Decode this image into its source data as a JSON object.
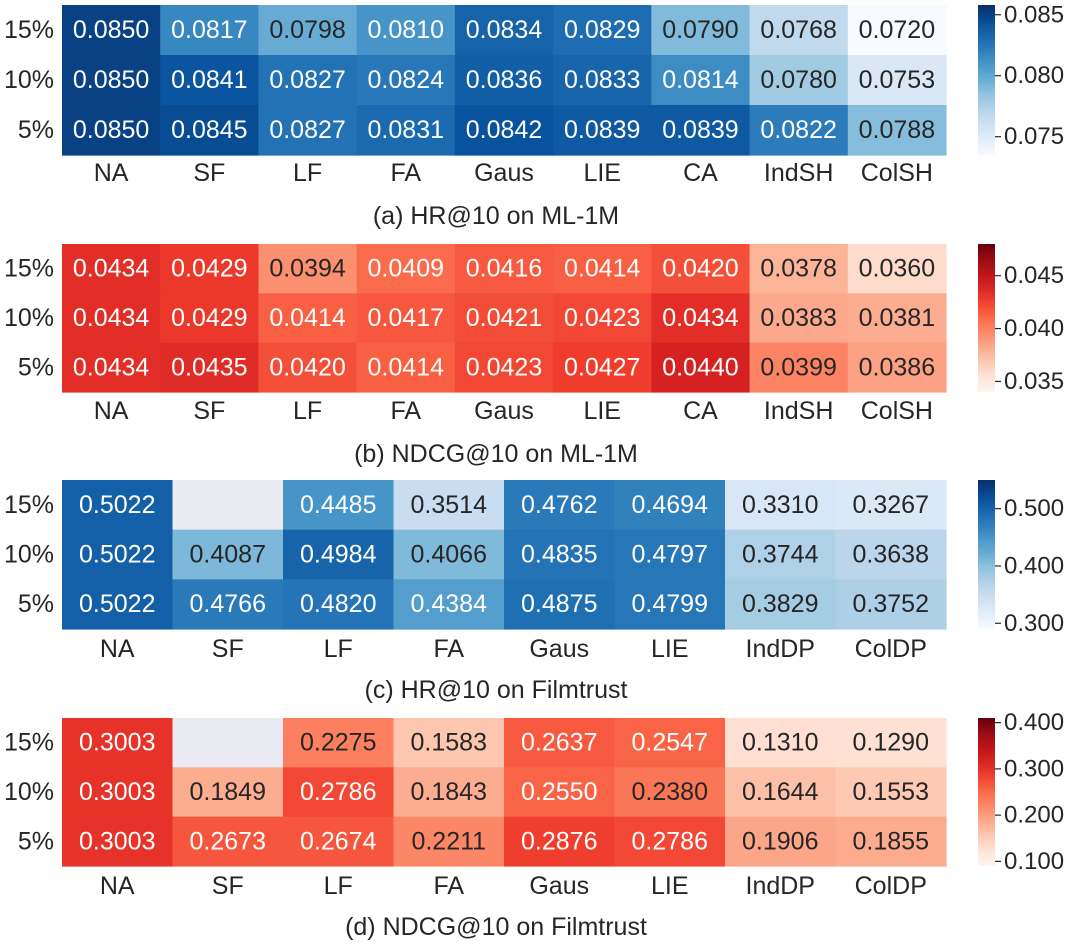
{
  "chart_data": [
    {
      "type": "heatmap",
      "caption": "(a) HR@10 on ML-1M",
      "rows": [
        "15%",
        "10%",
        "5%"
      ],
      "columns": [
        "NA",
        "SF",
        "LF",
        "FA",
        "Gaus",
        "LIE",
        "CA",
        "IndSH",
        "ColSH"
      ],
      "values": [
        [
          0.085,
          0.0817,
          0.0798,
          0.081,
          0.0834,
          0.0829,
          0.079,
          0.0768,
          0.072
        ],
        [
          0.085,
          0.0841,
          0.0827,
          0.0824,
          0.0836,
          0.0833,
          0.0814,
          0.078,
          0.0753
        ],
        [
          0.085,
          0.0845,
          0.0827,
          0.0831,
          0.0842,
          0.0839,
          0.0839,
          0.0822,
          0.0788
        ]
      ],
      "labels": [
        [
          "0.0850",
          "0.0817",
          "0.0798",
          "0.0810",
          "0.0834",
          "0.0829",
          "0.0790",
          "0.0768",
          "0.0720"
        ],
        [
          "0.0850",
          "0.0841",
          "0.0827",
          "0.0824",
          "0.0836",
          "0.0833",
          "0.0814",
          "0.0780",
          "0.0753"
        ],
        [
          "0.0850",
          "0.0845",
          "0.0827",
          "0.0831",
          "0.0842",
          "0.0839",
          "0.0839",
          "0.0822",
          "0.0788"
        ]
      ],
      "vrange": [
        0.0735,
        0.0858
      ],
      "colorbar_ticks": [
        0.085,
        0.08,
        0.075
      ],
      "colorbar_tick_labels": [
        "0.085",
        "0.080",
        "0.075"
      ],
      "colormap": "Blues"
    },
    {
      "type": "heatmap",
      "caption": "(b) NDCG@10 on ML-1M",
      "rows": [
        "15%",
        "10%",
        "5%"
      ],
      "columns": [
        "NA",
        "SF",
        "LF",
        "FA",
        "Gaus",
        "LIE",
        "CA",
        "IndSH",
        "ColSH"
      ],
      "values": [
        [
          0.0434,
          0.0429,
          0.0394,
          0.0409,
          0.0416,
          0.0414,
          0.042,
          0.0378,
          0.036
        ],
        [
          0.0434,
          0.0429,
          0.0414,
          0.0417,
          0.0421,
          0.0423,
          0.0434,
          0.0383,
          0.0381
        ],
        [
          0.0434,
          0.0435,
          0.042,
          0.0414,
          0.0423,
          0.0427,
          0.044,
          0.0399,
          0.0386
        ]
      ],
      "labels": [
        [
          "0.0434",
          "0.0429",
          "0.0394",
          "0.0409",
          "0.0416",
          "0.0414",
          "0.0420",
          "0.0378",
          "0.0360"
        ],
        [
          "0.0434",
          "0.0429",
          "0.0414",
          "0.0417",
          "0.0421",
          "0.0423",
          "0.0434",
          "0.0383",
          "0.0381"
        ],
        [
          "0.0434",
          "0.0435",
          "0.0420",
          "0.0414",
          "0.0423",
          "0.0427",
          "0.0440",
          "0.0399",
          "0.0386"
        ]
      ],
      "vrange": [
        0.034,
        0.048
      ],
      "colorbar_ticks": [
        0.045,
        0.04,
        0.035
      ],
      "colorbar_tick_labels": [
        "0.045",
        "0.040",
        "0.035"
      ],
      "colormap": "Reds"
    },
    {
      "type": "heatmap",
      "caption": "(c) HR@10 on Filmtrust",
      "rows": [
        "15%",
        "10%",
        "5%"
      ],
      "columns": [
        "NA",
        "SF",
        "LF",
        "FA",
        "Gaus",
        "LIE",
        "IndDP",
        "ColDP"
      ],
      "values": [
        [
          0.5022,
          null,
          0.4485,
          0.3514,
          0.4762,
          0.4694,
          0.331,
          0.3267
        ],
        [
          0.5022,
          0.4087,
          0.4984,
          0.4066,
          0.4835,
          0.4797,
          0.3744,
          0.3638
        ],
        [
          0.5022,
          0.4766,
          0.482,
          0.4384,
          0.4875,
          0.4799,
          0.3829,
          0.3752
        ]
      ],
      "labels": [
        [
          "0.5022",
          "",
          "0.4485",
          "0.3514",
          "0.4762",
          "0.4694",
          "0.3310",
          "0.3267"
        ],
        [
          "0.5022",
          "0.4087",
          "0.4984",
          "0.4066",
          "0.4835",
          "0.4797",
          "0.3744",
          "0.3638"
        ],
        [
          "0.5022",
          "0.4766",
          "0.4820",
          "0.4384",
          "0.4875",
          "0.4799",
          "0.3829",
          "0.3752"
        ]
      ],
      "vrange": [
        0.29,
        0.55
      ],
      "colorbar_ticks": [
        0.5,
        0.4,
        0.3
      ],
      "colorbar_tick_labels": [
        "0.500",
        "0.400",
        "0.300"
      ],
      "colormap": "Blues"
    },
    {
      "type": "heatmap",
      "caption": "(d) NDCG@10 on Filmtrust",
      "rows": [
        "15%",
        "10%",
        "5%"
      ],
      "columns": [
        "NA",
        "SF",
        "LF",
        "FA",
        "Gaus",
        "LIE",
        "IndDP",
        "ColDP"
      ],
      "values": [
        [
          0.3003,
          null,
          0.2275,
          0.1583,
          0.2637,
          0.2547,
          0.131,
          0.129
        ],
        [
          0.3003,
          0.1849,
          0.2786,
          0.1843,
          0.255,
          0.238,
          0.1644,
          0.1553
        ],
        [
          0.3003,
          0.2673,
          0.2674,
          0.2211,
          0.2876,
          0.2786,
          0.1906,
          0.1855
        ]
      ],
      "labels": [
        [
          "0.3003",
          "",
          "0.2275",
          "0.1583",
          "0.2637",
          "0.2547",
          "0.1310",
          "0.1290"
        ],
        [
          "0.3003",
          "0.1849",
          "0.2786",
          "0.1843",
          "0.2550",
          "0.2380",
          "0.1644",
          "0.1553"
        ],
        [
          "0.3003",
          "0.2673",
          "0.2674",
          "0.2211",
          "0.2876",
          "0.2786",
          "0.1906",
          "0.1855"
        ]
      ],
      "vrange": [
        0.09,
        0.41
      ],
      "colorbar_ticks": [
        0.4,
        0.3,
        0.2,
        0.1
      ],
      "colorbar_tick_labels": [
        "0.400",
        "0.300",
        "0.200",
        "0.100"
      ],
      "colormap": "Reds"
    }
  ],
  "colors": {
    "missing_cell": "#eaeaf2",
    "text_dark": "#262626",
    "text_light": "#ffffff"
  }
}
